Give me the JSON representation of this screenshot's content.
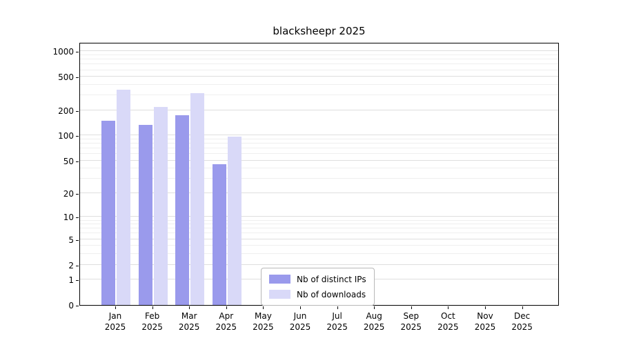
{
  "chart_data": {
    "type": "bar",
    "title": "blacksheepr 2025",
    "categories": [
      "Jan",
      "Feb",
      "Mar",
      "Apr",
      "May",
      "Jun",
      "Jul",
      "Aug",
      "Sep",
      "Oct",
      "Nov",
      "Dec"
    ],
    "category_year": "2025",
    "series": [
      {
        "name": "Nb of distinct IPs",
        "color": "#9a9aec",
        "values": [
          150,
          135,
          175,
          45,
          0,
          0,
          0,
          0,
          0,
          0,
          0,
          0
        ]
      },
      {
        "name": "Nb of downloads",
        "color": "#d9d9f8",
        "values": [
          350,
          220,
          320,
          97,
          0,
          0,
          0,
          0,
          0,
          0,
          0,
          0
        ]
      }
    ],
    "yscale": "log1p",
    "yticks": [
      0,
      1,
      2,
      5,
      10,
      20,
      50,
      100,
      200,
      500,
      1000
    ],
    "yticks_minor": [
      3,
      4,
      6,
      7,
      8,
      9,
      30,
      40,
      60,
      70,
      80,
      90,
      300,
      400,
      600,
      700,
      800,
      900
    ],
    "ylim": [
      0,
      1288
    ],
    "xlabel": "",
    "ylabel": "",
    "grid": true,
    "legend_position": "lower center"
  },
  "style": {
    "grid_major_color": "#dedede",
    "grid_minor_color": "#efefef",
    "axis_color": "#000000",
    "legend_border_color": "#b7b7b7",
    "background": "#ffffff"
  }
}
